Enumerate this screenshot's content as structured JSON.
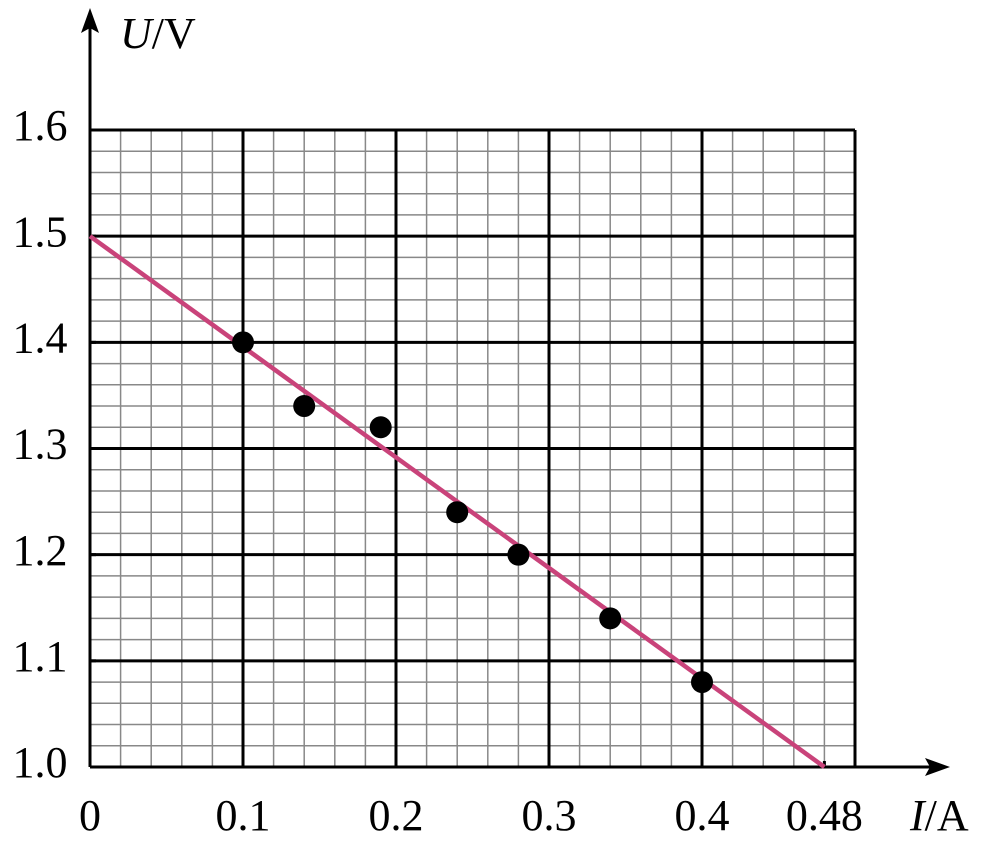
{
  "chart_data": {
    "type": "scatter",
    "xlabel": {
      "variable": "I",
      "unit": "/A"
    },
    "ylabel": {
      "variable": "U",
      "unit": "/V"
    },
    "xlim": [
      0,
      0.5
    ],
    "ylim": [
      1.0,
      1.6
    ],
    "xticks": [
      0,
      0.1,
      0.2,
      0.3,
      0.4,
      0.48
    ],
    "yticks": [
      {
        "value": 1.0,
        "label": "1.0"
      },
      1.1,
      1.2,
      1.3,
      1.4,
      1.5,
      1.6
    ],
    "grid": {
      "major_x": 0.1,
      "minor_x": 0.02,
      "major_y": 0.1,
      "minor_y": 0.02
    },
    "series": [
      {
        "color": "#000000",
        "x": [
          0.1,
          0.14,
          0.19,
          0.24,
          0.28,
          0.34,
          0.4
        ],
        "values": [
          1.4,
          1.34,
          1.32,
          1.24,
          1.2,
          1.14,
          1.08
        ]
      }
    ],
    "fit_line": {
      "color": "#c9437a",
      "x": [
        0,
        0.48
      ],
      "values": [
        1.5,
        1.0
      ]
    }
  }
}
